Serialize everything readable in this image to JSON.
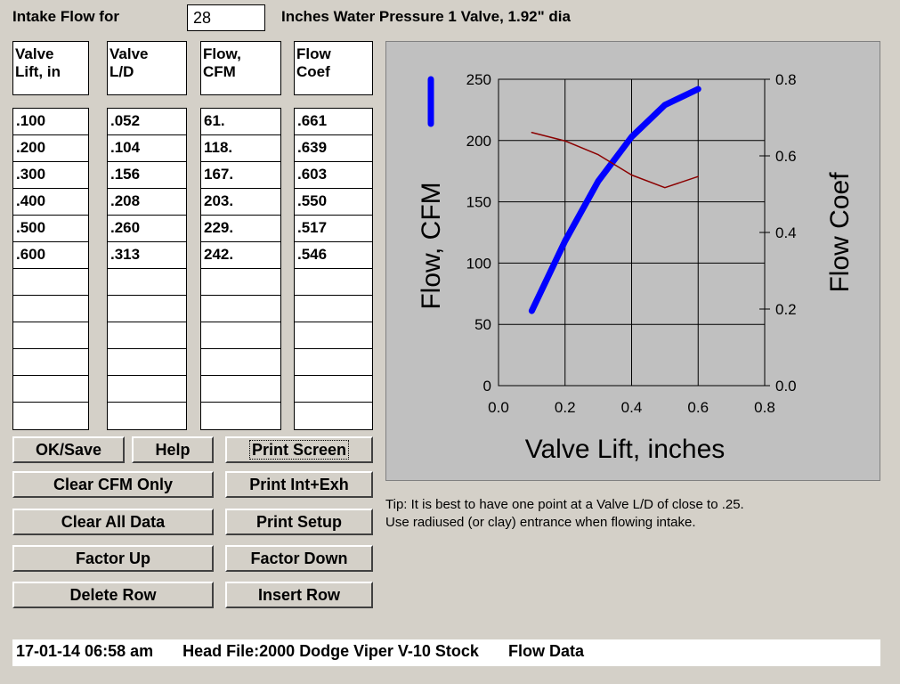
{
  "header": {
    "label": "Intake Flow for",
    "pressure_value": "28",
    "description": "Inches Water Pressure  1 Valve,  1.92\" dia"
  },
  "columns": [
    {
      "header_line1": "Valve",
      "header_line2": "Lift, in",
      "values": [
        ".100",
        ".200",
        ".300",
        ".400",
        ".500",
        ".600",
        "",
        "",
        "",
        "",
        "",
        ""
      ]
    },
    {
      "header_line1": "Valve",
      "header_line2": "L/D",
      "values": [
        ".052",
        ".104",
        ".156",
        ".208",
        ".260",
        ".313",
        "",
        "",
        "",
        "",
        "",
        ""
      ]
    },
    {
      "header_line1": "Flow,",
      "header_line2": "CFM",
      "values": [
        "61.",
        "118.",
        "167.",
        "203.",
        "229.",
        "242.",
        "",
        "",
        "",
        "",
        "",
        ""
      ]
    },
    {
      "header_line1": "Flow",
      "header_line2": "Coef",
      "values": [
        ".661",
        ".639",
        ".603",
        ".550",
        ".517",
        ".546",
        "",
        "",
        "",
        "",
        "",
        ""
      ]
    }
  ],
  "buttons": {
    "ok_save": "OK/Save",
    "help": "Help",
    "print_screen": "Print Screen",
    "clear_cfm": "Clear CFM Only",
    "print_int_exh": "Print Int+Exh",
    "clear_all": "Clear All Data",
    "print_setup": "Print Setup",
    "factor_up": "Factor Up",
    "factor_down": "Factor Down",
    "delete_row": "Delete Row",
    "insert_row": "Insert Row"
  },
  "tip": {
    "line1": "Tip:  It is best to have one point at a Valve L/D of close to .25.",
    "line2": "Use radiused (or clay) entrance when flowing intake."
  },
  "status": {
    "datetime": "17-01-14  06:58 am",
    "head_file": "Head File:2000 Dodge Viper V-10 Stock",
    "mode": "Flow Data"
  },
  "chart_data": {
    "type": "line",
    "xlabel": "Valve Lift, inches",
    "ylabel": "Flow, CFM",
    "y2label": "Flow Coef",
    "xlim": [
      0.0,
      0.8
    ],
    "ylim": [
      0,
      250
    ],
    "y2lim": [
      0.0,
      0.8
    ],
    "x_ticks": [
      "0.0",
      "0.2",
      "0.4",
      "0.6",
      "0.8"
    ],
    "y_ticks": [
      "0",
      "50",
      "100",
      "150",
      "200",
      "250"
    ],
    "y2_ticks": [
      "0.0",
      "0.2",
      "0.4",
      "0.6",
      "0.8"
    ],
    "grid": true,
    "series": [
      {
        "name": "Flow, CFM",
        "axis": "left",
        "color": "#0000ff",
        "x": [
          0.1,
          0.2,
          0.3,
          0.4,
          0.5,
          0.6
        ],
        "y": [
          61,
          118,
          167,
          203,
          229,
          242
        ]
      },
      {
        "name": "Flow Coef",
        "axis": "right",
        "color": "#8b0000",
        "x": [
          0.1,
          0.2,
          0.3,
          0.4,
          0.5,
          0.6
        ],
        "y": [
          0.661,
          0.639,
          0.603,
          0.55,
          0.517,
          0.546
        ]
      }
    ]
  }
}
